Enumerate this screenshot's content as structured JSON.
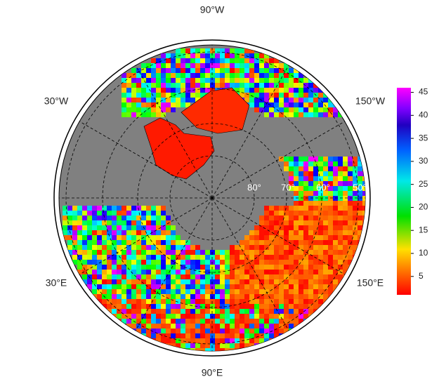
{
  "map": {
    "longitude_labels": [
      "90°W",
      "30°W",
      "150°W",
      "30°E",
      "150°E",
      "90°E"
    ],
    "latitude_labels": [
      "80°",
      "70°",
      "60°",
      "50°"
    ],
    "colorbar": {
      "lim": [
        1,
        46
      ],
      "ticks": [
        5,
        10,
        15,
        20,
        25,
        30,
        35,
        40,
        45
      ]
    }
  }
}
